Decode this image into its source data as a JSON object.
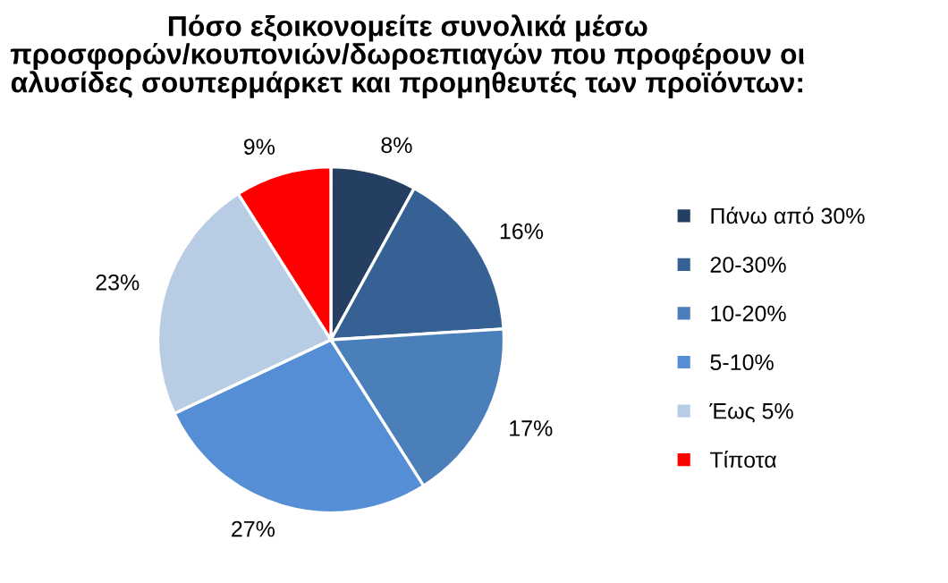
{
  "chart_data": {
    "type": "pie",
    "title": "Πόσο εξοικονομείτε συνολικά μέσω\nπροσφορών/κουπονιών/δωροεπιαγών που προφέρουν οι\nαλυσίδες σουπερμάρκετ και προμηθευτές των προϊόντων:",
    "categories": [
      "Πάνω από 30%",
      "20-30%",
      "10-20%",
      "5-10%",
      "Έως 5%",
      "Τίποτα"
    ],
    "values": [
      8,
      16,
      17,
      27,
      23,
      9
    ],
    "value_labels": [
      "8%",
      "16%",
      "17%",
      "27%",
      "23%",
      "9%"
    ],
    "colors": [
      "#253f63",
      "#366194",
      "#4b7fba",
      "#558ed5",
      "#b8cce4",
      "#ff0000"
    ],
    "legend": "right"
  }
}
